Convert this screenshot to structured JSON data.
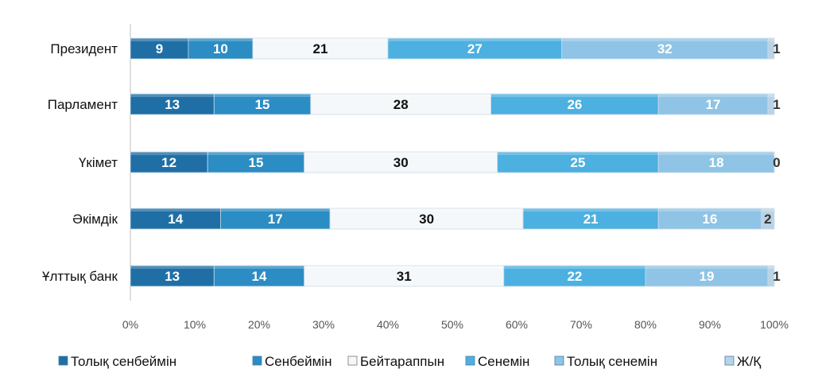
{
  "chart_data": {
    "type": "bar",
    "orientation": "horizontal",
    "stacked": "percent",
    "title": "",
    "categories": [
      "Президент",
      "Парламент",
      "Үкімет",
      "Әкімдік",
      "Ұлттық банк"
    ],
    "series": [
      {
        "name": "Толық сенбеймін",
        "color": "#1f6fa6",
        "label_color": "#ffffff",
        "values": [
          9,
          13,
          12,
          14,
          13
        ]
      },
      {
        "name": "Сенбеймін",
        "color": "#2c8cc4",
        "label_color": "#ffffff",
        "values": [
          10,
          15,
          15,
          17,
          14
        ]
      },
      {
        "name": "Бейтараппын",
        "color": "#f5f8fa",
        "label_color": "#111111",
        "values": [
          21,
          28,
          30,
          30,
          31
        ]
      },
      {
        "name": "Сенемін",
        "color": "#4cb0e0",
        "label_color": "#ffffff",
        "values": [
          27,
          26,
          25,
          21,
          22
        ]
      },
      {
        "name": "Толық сенемін",
        "color": "#8fc4e6",
        "label_color": "#ffffff",
        "values": [
          32,
          17,
          18,
          16,
          19
        ]
      },
      {
        "name": "Ж/Қ",
        "color": "#b9d3e6",
        "label_color": "#333333",
        "values": [
          1,
          1,
          0,
          2,
          1
        ]
      }
    ],
    "x_ticks": [
      "0%",
      "10%",
      "20%",
      "30%",
      "40%",
      "50%",
      "60%",
      "70%",
      "80%",
      "90%",
      "100%"
    ],
    "xlim": [
      0,
      100
    ],
    "grid": false,
    "legend_position": "bottom"
  }
}
